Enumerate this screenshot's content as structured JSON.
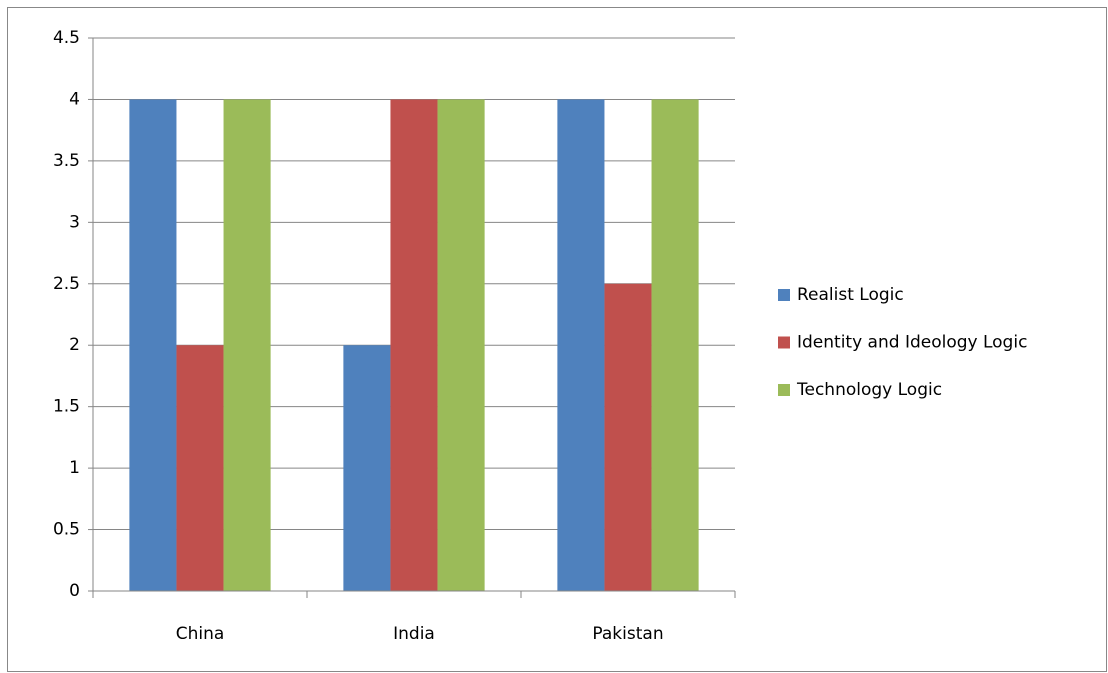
{
  "chart_data": {
    "type": "bar",
    "categories": [
      "China",
      "India",
      "Pakistan"
    ],
    "series": [
      {
        "name": "Realist Logic",
        "color": "#4f81bd",
        "values": [
          4,
          2,
          4
        ]
      },
      {
        "name": "Identity and Ideology Logic",
        "color": "#c0504d",
        "values": [
          2,
          4,
          2.5
        ]
      },
      {
        "name": "Technology Logic",
        "color": "#9bbb59",
        "values": [
          4,
          4,
          4
        ]
      }
    ],
    "ylim": [
      0,
      4.5
    ],
    "yticks": [
      0,
      0.5,
      1,
      1.5,
      2,
      2.5,
      3,
      3.5,
      4,
      4.5
    ],
    "grid": true,
    "legend": "right"
  }
}
